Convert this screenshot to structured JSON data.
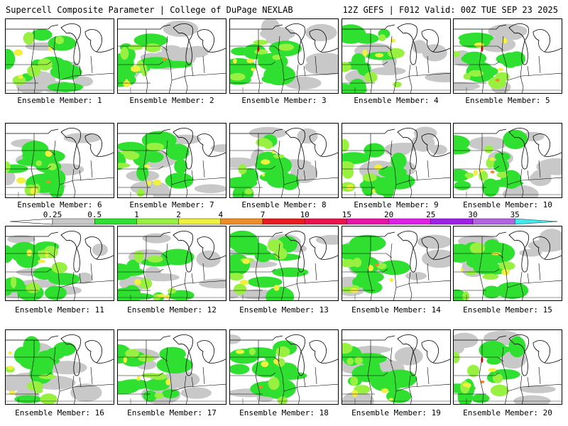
{
  "header": {
    "title_left": "Supercell Composite Parameter | College of DuPage NEXLAB",
    "title_right": "12Z GEFS | F012 Valid: 00Z TUE SEP 23 2025"
  },
  "colors": {
    "gray": "#c8c8c8",
    "green": "#30e030",
    "lime": "#98f040",
    "yellow": "#f0f040",
    "orange": "#f08c28",
    "red": "#e81c1c",
    "background": "#ffffff",
    "boundary": "#000000"
  },
  "colorbar": {
    "labels": [
      "0.25",
      "0.5",
      "1",
      "2",
      "4",
      "7",
      "10",
      "15",
      "20",
      "25",
      "30",
      "35"
    ],
    "colors": [
      "#c8c8c8",
      "#30e030",
      "#98f040",
      "#f0f040",
      "#f08c28",
      "#e81c1c",
      "#e8144c",
      "#e814a8",
      "#e020e8",
      "#a020e8",
      "#b464e0",
      "#40e8f0"
    ]
  },
  "panels": [
    {
      "label": "Ensemble Member: 1"
    },
    {
      "label": "Ensemble Member: 2"
    },
    {
      "label": "Ensemble Member: 3"
    },
    {
      "label": "Ensemble Member: 4"
    },
    {
      "label": "Ensemble Member: 5"
    },
    {
      "label": "Ensemble Member: 6"
    },
    {
      "label": "Ensemble Member: 7"
    },
    {
      "label": "Ensemble Member: 8"
    },
    {
      "label": "Ensemble Member: 9"
    },
    {
      "label": "Ensemble Member: 10"
    },
    {
      "label": "Ensemble Member: 11"
    },
    {
      "label": "Ensemble Member: 12"
    },
    {
      "label": "Ensemble Member: 13"
    },
    {
      "label": "Ensemble Member: 14"
    },
    {
      "label": "Ensemble Member: 15"
    },
    {
      "label": "Ensemble Member: 16"
    },
    {
      "label": "Ensemble Member: 17"
    },
    {
      "label": "Ensemble Member: 18"
    },
    {
      "label": "Ensemble Member: 19"
    },
    {
      "label": "Ensemble Member: 20"
    }
  ]
}
